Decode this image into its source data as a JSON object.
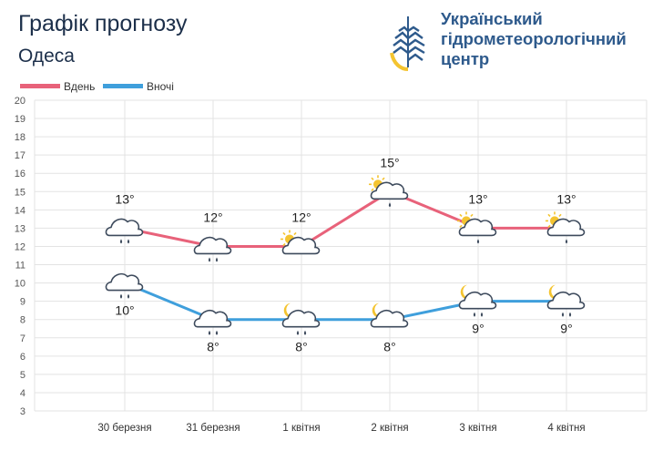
{
  "header": {
    "title": "Графік прогнозу",
    "city": "Одеса",
    "org_lines": [
      "Український",
      "гідрометеорологічний",
      "центр"
    ]
  },
  "colors": {
    "day": "#e8627a",
    "night": "#3f9fdc",
    "grid": "#e3e3e3",
    "text": "#1c2f4a",
    "cloud_stroke": "#3d4a5c",
    "sun": "#f4c430",
    "moon": "#f4c430"
  },
  "chart_data": {
    "type": "line",
    "categories": [
      "30 березня",
      "31 березня",
      "1 квітня",
      "2 квітня",
      "3 квітня",
      "4 квітня"
    ],
    "series": [
      {
        "name": "Вдень",
        "values": [
          13,
          12,
          12,
          15,
          13,
          13
        ],
        "labels": [
          "13°",
          "12°",
          "12°",
          "15°",
          "13°",
          "13°"
        ],
        "icons": [
          "cloud-rain",
          "cloud-rain",
          "sun-cloud",
          "sun-cloud-rain",
          "sun-cloud-rain",
          "sun-cloud-rain"
        ]
      },
      {
        "name": "Вночі",
        "values": [
          10,
          8,
          8,
          8,
          9,
          9
        ],
        "labels": [
          "10°",
          "8°",
          "8°",
          "8°",
          "9°",
          "9°"
        ],
        "icons": [
          "cloud-rain",
          "cloud-rain",
          "moon-cloud-rain",
          "moon-cloud",
          "moon-cloud-rain",
          "moon-cloud-rain"
        ]
      }
    ],
    "yticks": [
      "3",
      "4",
      "5",
      "6",
      "7",
      "8",
      "9",
      "10",
      "11",
      "12",
      "13",
      "14",
      "15",
      "16",
      "17",
      "18",
      "19",
      "20"
    ],
    "ylim": [
      3,
      20
    ],
    "grid": true,
    "legend_position": "top-left"
  }
}
